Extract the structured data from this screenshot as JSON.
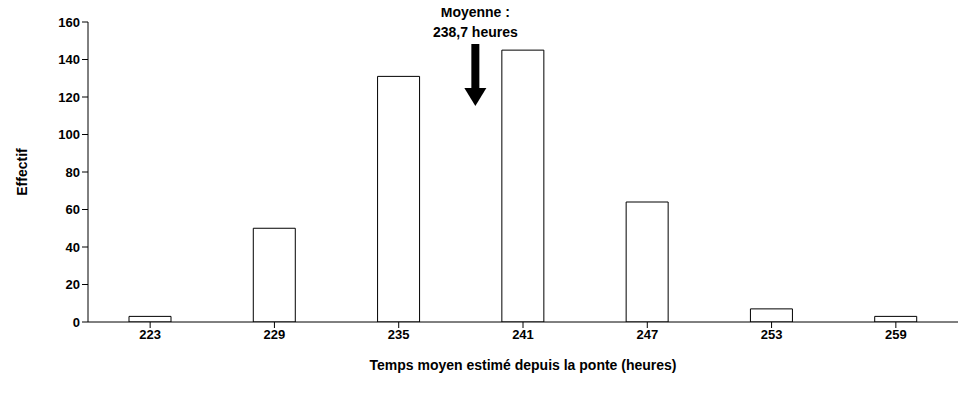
{
  "chart_data": {
    "type": "bar",
    "x_label": "Temps moyen estimé depuis la ponte  (heures)",
    "y_label": "Effectif",
    "categories": [
      223,
      229,
      235,
      241,
      247,
      253,
      259
    ],
    "values": [
      3,
      50,
      131,
      145,
      64,
      7,
      3
    ],
    "color": "#ffffff",
    "ylim": [
      0,
      160
    ],
    "yticks": [
      0,
      20,
      40,
      60,
      80,
      100,
      120,
      140,
      160
    ],
    "grid": false,
    "annotations": [
      {
        "lines": [
          "Moyenne :",
          "238,7 heures"
        ],
        "x": 238.7
      }
    ]
  }
}
